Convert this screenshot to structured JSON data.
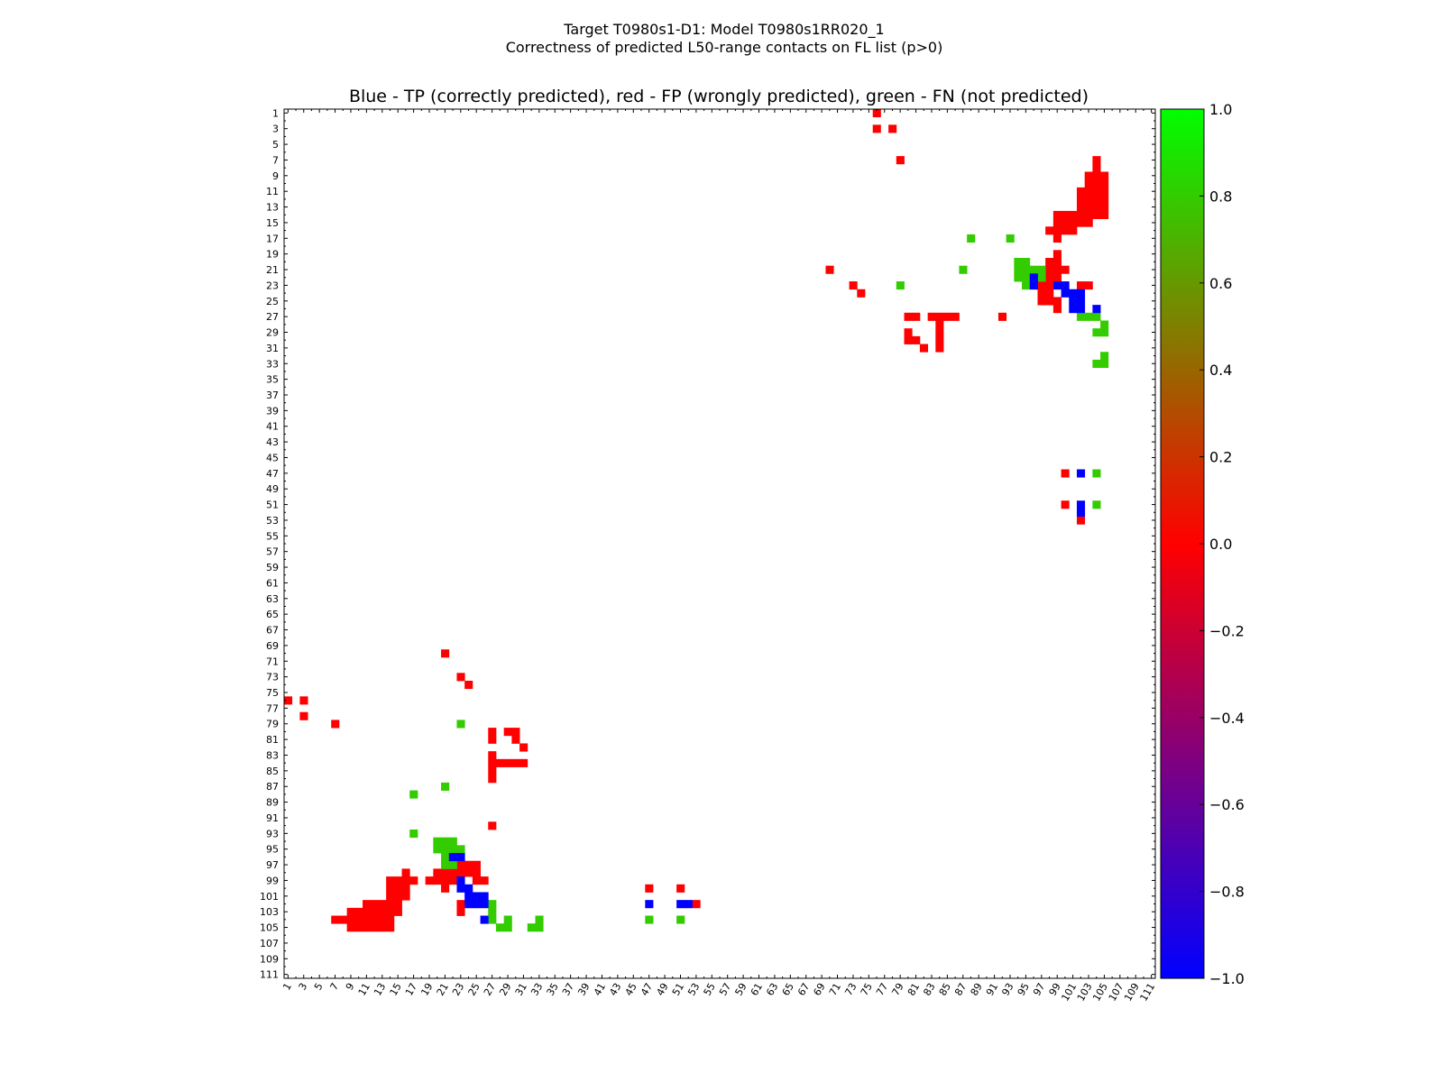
{
  "figure": {
    "suptitle_line1": "Target T0980s1-D1: Model T0980s1RR020_1",
    "suptitle_line2": "Correctness of predicted L50-range contacts on FL list (p>0)",
    "axes_title": "Blue - TP (correctly predicted), red - FP (wrongly predicted), green - FN (not predicted)"
  },
  "colors": {
    "tp": "#0000ff",
    "fp": "#ff0000",
    "fn": "#33cc00"
  },
  "colorbar": {
    "ticks": [
      {
        "value": 1.0,
        "label": "1.0"
      },
      {
        "value": 0.8,
        "label": "0.8"
      },
      {
        "value": 0.6,
        "label": "0.6"
      },
      {
        "value": 0.4,
        "label": "0.4"
      },
      {
        "value": 0.2,
        "label": "0.2"
      },
      {
        "value": 0.0,
        "label": "0.0"
      },
      {
        "value": -0.2,
        "label": "−0.2"
      },
      {
        "value": -0.4,
        "label": "−0.4"
      },
      {
        "value": -0.6,
        "label": "−0.6"
      },
      {
        "value": -0.8,
        "label": "−0.8"
      },
      {
        "value": -1.0,
        "label": "−1.0"
      }
    ],
    "gradient": [
      "#0000ff",
      "#ff0000",
      "#00ff00"
    ]
  },
  "chart_data": {
    "type": "heatmap",
    "xlim": [
      1,
      111
    ],
    "ylim": [
      1,
      111
    ],
    "tick_step": 2,
    "upper_cells": {
      "fp": [
        [
          1,
          76
        ],
        [
          3,
          76
        ],
        [
          3,
          78
        ],
        [
          7,
          79
        ],
        [
          7,
          104
        ],
        [
          8,
          104
        ],
        [
          9,
          103
        ],
        [
          9,
          104
        ],
        [
          9,
          105
        ],
        [
          10,
          103
        ],
        [
          10,
          104
        ],
        [
          10,
          105
        ],
        [
          11,
          102
        ],
        [
          11,
          103
        ],
        [
          11,
          104
        ],
        [
          11,
          105
        ],
        [
          12,
          102
        ],
        [
          12,
          103
        ],
        [
          12,
          104
        ],
        [
          12,
          105
        ],
        [
          13,
          102
        ],
        [
          13,
          103
        ],
        [
          13,
          104
        ],
        [
          13,
          105
        ],
        [
          14,
          99
        ],
        [
          14,
          100
        ],
        [
          14,
          101
        ],
        [
          14,
          102
        ],
        [
          14,
          103
        ],
        [
          14,
          104
        ],
        [
          14,
          105
        ],
        [
          15,
          99
        ],
        [
          15,
          100
        ],
        [
          15,
          101
        ],
        [
          15,
          102
        ],
        [
          15,
          103
        ],
        [
          16,
          98
        ],
        [
          16,
          99
        ],
        [
          16,
          100
        ],
        [
          16,
          101
        ],
        [
          17,
          99
        ],
        [
          19,
          99
        ],
        [
          20,
          98
        ],
        [
          20,
          99
        ],
        [
          21,
          70
        ],
        [
          21,
          98
        ],
        [
          21,
          99
        ],
        [
          21,
          100
        ],
        [
          22,
          98
        ],
        [
          22,
          99
        ],
        [
          23,
          73
        ],
        [
          23,
          97
        ],
        [
          23,
          98
        ],
        [
          23,
          102
        ],
        [
          23,
          103
        ],
        [
          24,
          74
        ],
        [
          24,
          97
        ],
        [
          24,
          98
        ],
        [
          25,
          97
        ],
        [
          25,
          98
        ],
        [
          25,
          99
        ],
        [
          26,
          99
        ],
        [
          27,
          80
        ],
        [
          27,
          81
        ],
        [
          27,
          83
        ],
        [
          27,
          84
        ],
        [
          27,
          85
        ],
        [
          27,
          86
        ],
        [
          27,
          92
        ],
        [
          28,
          84
        ],
        [
          29,
          80
        ],
        [
          29,
          84
        ],
        [
          30,
          80
        ],
        [
          30,
          81
        ],
        [
          30,
          84
        ],
        [
          31,
          82
        ],
        [
          31,
          84
        ],
        [
          47,
          100
        ],
        [
          51,
          100
        ],
        [
          53,
          102
        ]
      ],
      "tp": [
        [
          22,
          96
        ],
        [
          23,
          96
        ],
        [
          23,
          99
        ],
        [
          23,
          100
        ],
        [
          24,
          100
        ],
        [
          24,
          101
        ],
        [
          24,
          102
        ],
        [
          25,
          101
        ],
        [
          25,
          102
        ],
        [
          26,
          101
        ],
        [
          26,
          102
        ],
        [
          26,
          104
        ],
        [
          47,
          102
        ],
        [
          51,
          102
        ],
        [
          52,
          102
        ]
      ],
      "fn": [
        [
          17,
          88
        ],
        [
          17,
          93
        ],
        [
          20,
          94
        ],
        [
          20,
          95
        ],
        [
          21,
          94
        ],
        [
          21,
          95
        ],
        [
          21,
          96
        ],
        [
          21,
          97
        ],
        [
          21,
          87
        ],
        [
          22,
          94
        ],
        [
          22,
          95
        ],
        [
          22,
          97
        ],
        [
          23,
          79
        ],
        [
          23,
          95
        ],
        [
          27,
          102
        ],
        [
          27,
          103
        ],
        [
          27,
          104
        ],
        [
          28,
          105
        ],
        [
          29,
          104
        ],
        [
          29,
          105
        ],
        [
          32,
          105
        ],
        [
          33,
          104
        ],
        [
          33,
          105
        ],
        [
          47,
          104
        ],
        [
          51,
          104
        ]
      ]
    }
  }
}
